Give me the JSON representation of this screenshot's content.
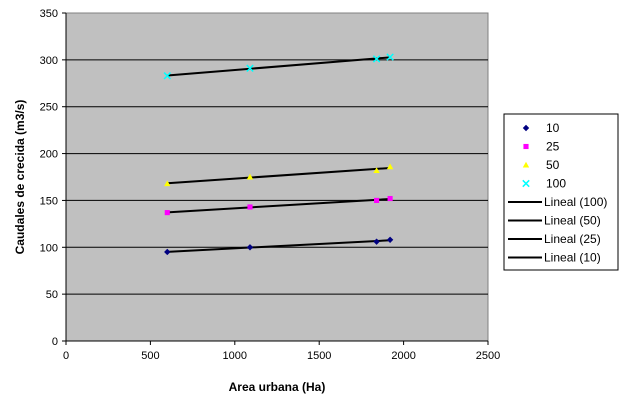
{
  "chart_data": {
    "type": "scatter",
    "xlabel": "Area urbana (Ha)",
    "ylabel": "Caudales de crecida (m3/s)",
    "xlim": [
      0,
      2500
    ],
    "ylim": [
      0,
      350
    ],
    "xticks": [
      0,
      500,
      1000,
      1500,
      2000,
      2500
    ],
    "yticks": [
      0,
      50,
      100,
      150,
      200,
      250,
      300,
      350
    ],
    "grid": "horizontal",
    "plot_background": "#c0c0c0",
    "legend_position": "right",
    "series": [
      {
        "name": "10",
        "marker": "diamond",
        "color": "#000080",
        "x": [
          600,
          1090,
          1840,
          1920
        ],
        "y": [
          95,
          100,
          106,
          108
        ]
      },
      {
        "name": "25",
        "marker": "square",
        "color": "#ff00ff",
        "x": [
          600,
          1090,
          1840,
          1920
        ],
        "y": [
          137,
          143,
          150,
          152
        ]
      },
      {
        "name": "50",
        "marker": "triangle",
        "color": "#ffff00",
        "x": [
          600,
          1090,
          1840,
          1920
        ],
        "y": [
          168,
          175,
          182,
          186
        ]
      },
      {
        "name": "100",
        "marker": "x",
        "color": "#00ffff",
        "x": [
          600,
          1090,
          1840,
          1920
        ],
        "y": [
          283,
          291,
          301,
          303
        ]
      }
    ],
    "trendlines": [
      {
        "name": "Lineal (100)",
        "series": "100",
        "color": "#000000"
      },
      {
        "name": "Lineal (50)",
        "series": "50",
        "color": "#000000"
      },
      {
        "name": "Lineal (25)",
        "series": "25",
        "color": "#000000"
      },
      {
        "name": "Lineal (10)",
        "series": "10",
        "color": "#000000"
      }
    ]
  }
}
